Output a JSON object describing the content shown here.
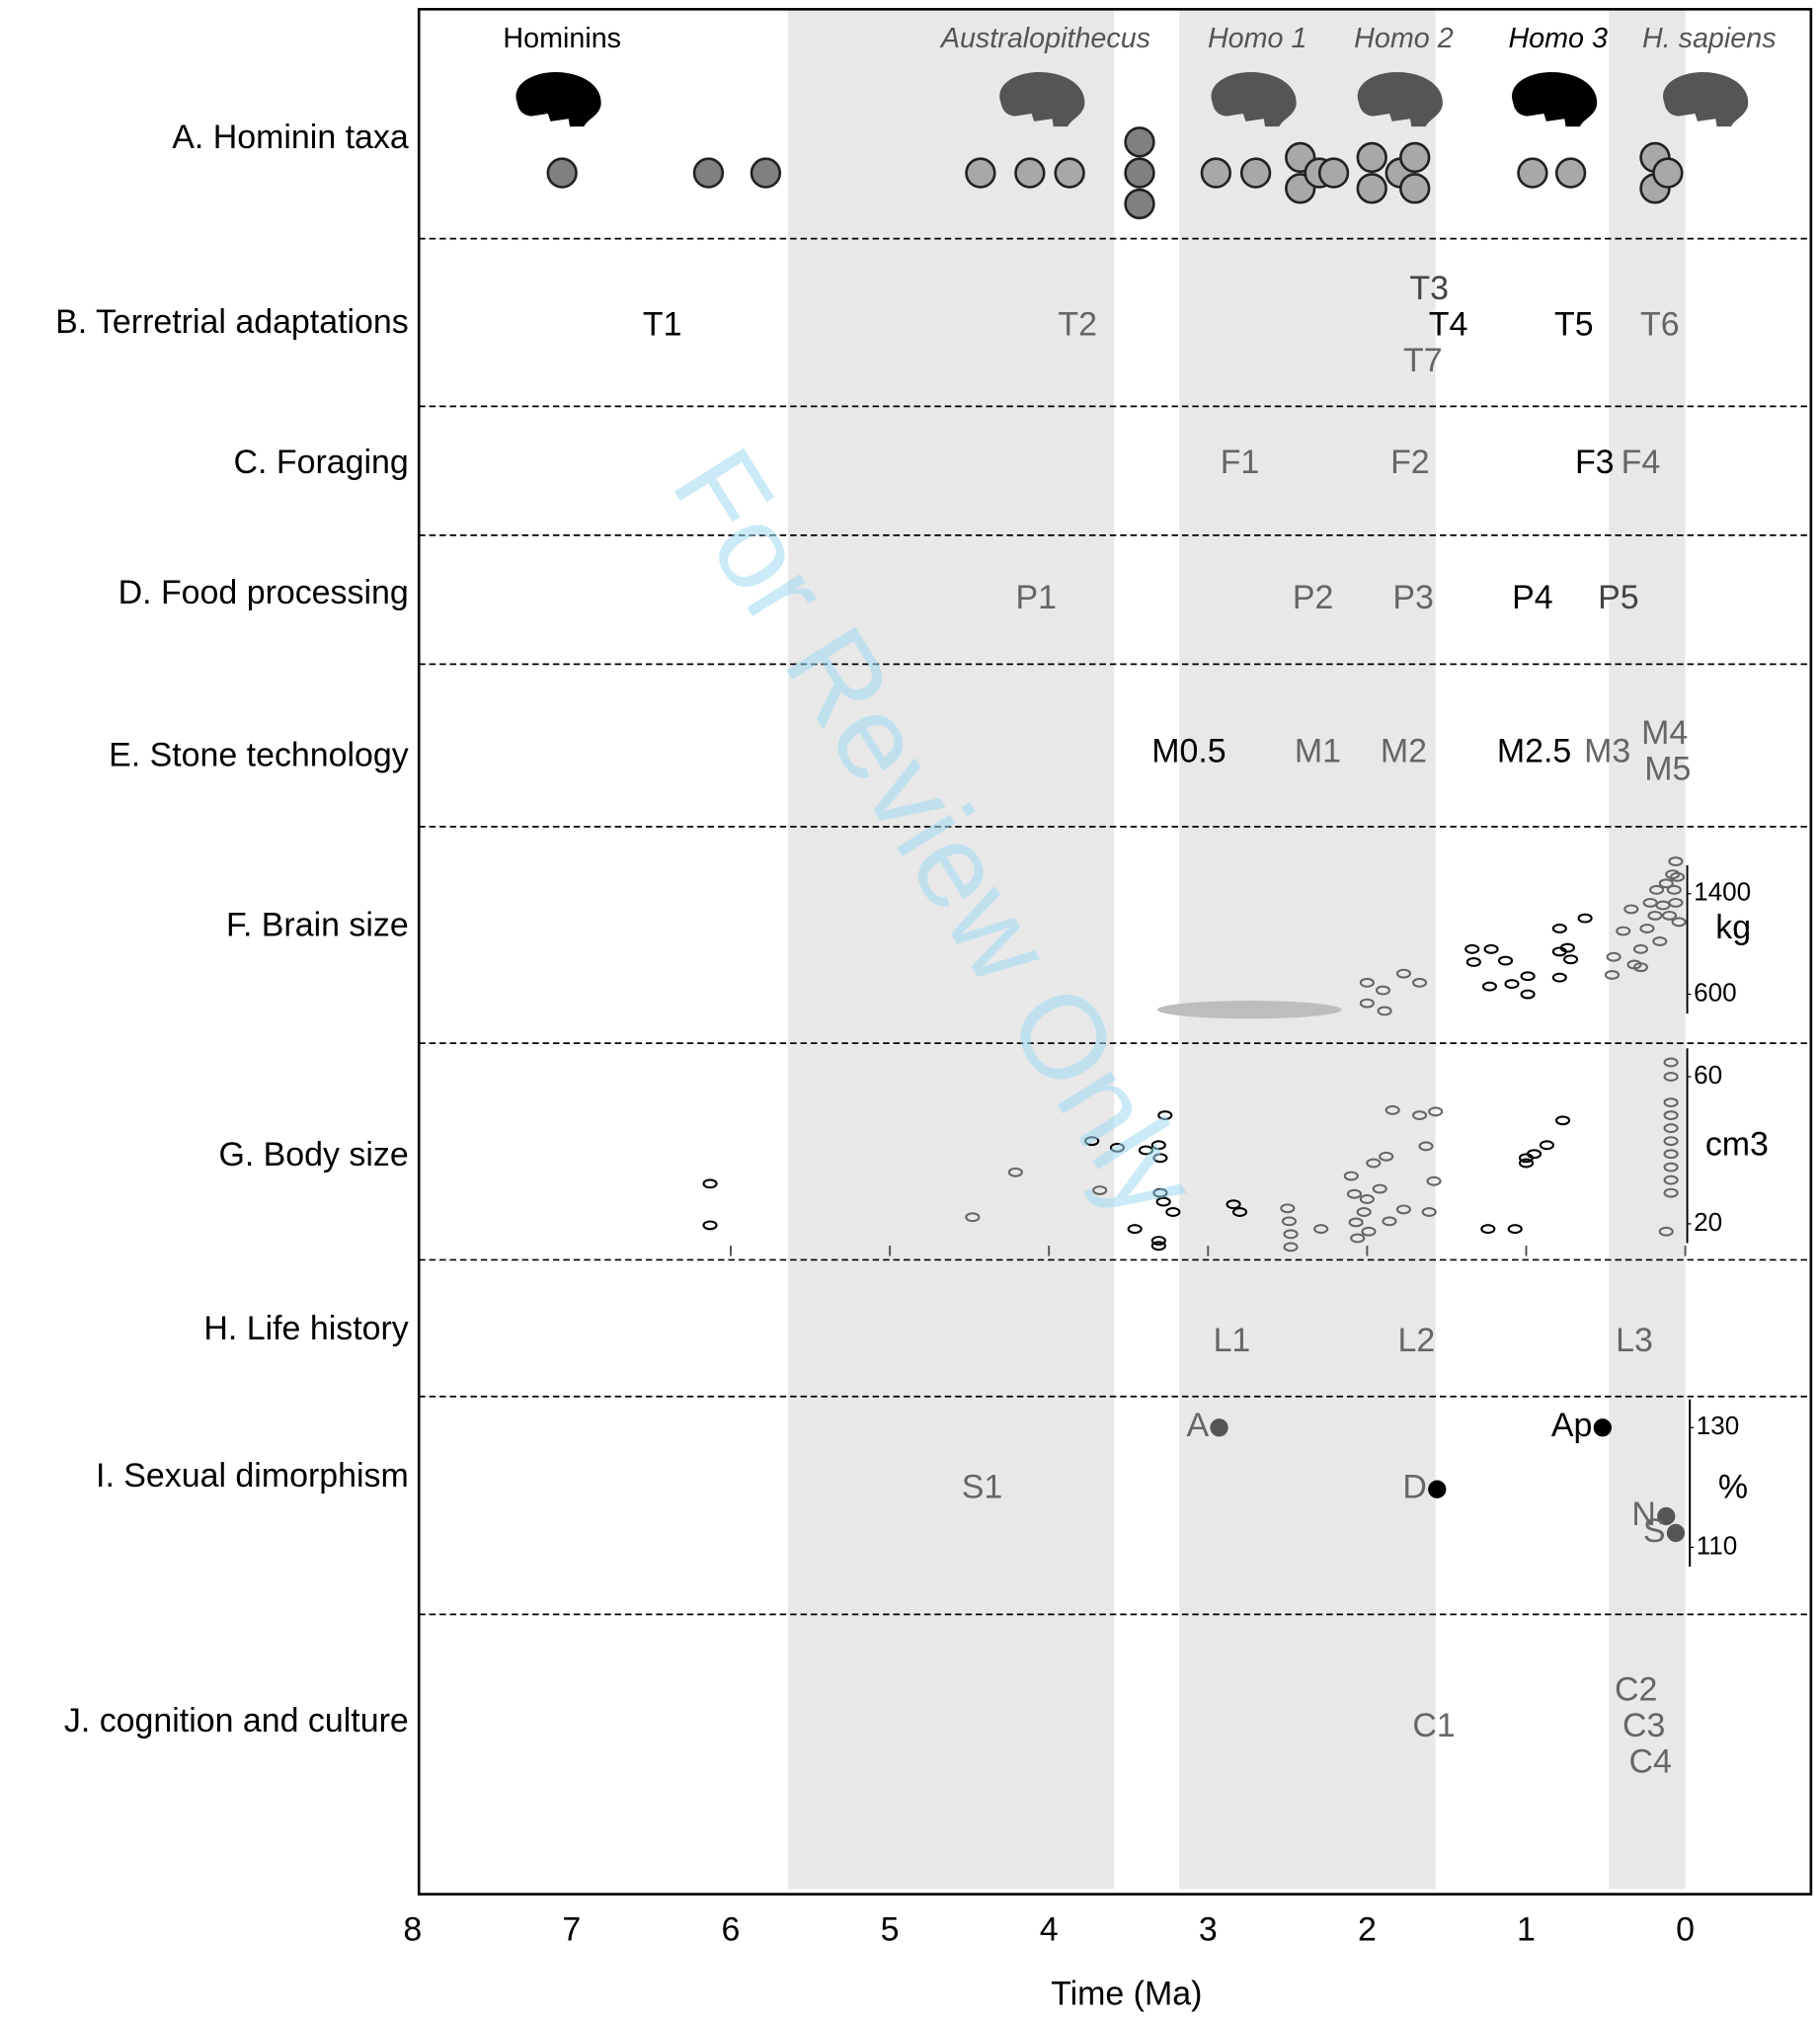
{
  "chart_data": {
    "type": "timeline",
    "watermark": "For Review Only",
    "x_label": "Time (Ma)",
    "xlim": [
      7.96,
      -0.79
    ],
    "xticks": [
      8,
      7,
      6,
      5,
      4,
      3,
      2,
      1,
      0
    ],
    "shaded": [
      [
        5.64,
        3.59
      ],
      [
        3.18,
        1.57
      ],
      [
        0.48,
        0
      ]
    ],
    "shade_color": "#e8e8e8",
    "taxa": [
      {
        "name": "Hominins",
        "x": 7.06,
        "color": "#000000",
        "italic": false
      },
      {
        "name": "Australopithecus",
        "x": 4.02,
        "color": "#555555",
        "italic": true
      },
      {
        "name": "Homo 1",
        "x": 2.69,
        "color": "#555555",
        "italic": true
      },
      {
        "name": "Homo 2",
        "x": 1.77,
        "color": "#555555",
        "italic": true
      },
      {
        "name": "Homo 3",
        "x": 0.8,
        "color": "#000000",
        "italic": true
      },
      {
        "name": "H. sapiens",
        "x": -0.15,
        "color": "#555555",
        "italic": true
      }
    ],
    "rows": [
      {
        "label": "A. Hominin taxa",
        "points": [
          {
            "color": "#808080",
            "x": [
              7.06,
              6.14,
              5.78,
              3.43,
              3.43,
              3.43
            ]
          },
          {
            "color": "#a8a8a8",
            "x": [
              4.43,
              4.12,
              3.87,
              2.95,
              2.7,
              2.42,
              2.42,
              2.3,
              2.21,
              1.97,
              1.97,
              1.79,
              1.7,
              1.7,
              0.96,
              0.72,
              0.19,
              0.19,
              0.11
            ]
          }
        ]
      },
      {
        "label": "B. Terretrial adaptations",
        "codes": [
          {
            "text": "T1",
            "x": 6.43,
            "color": "#000000"
          },
          {
            "text": "T2",
            "x": 3.82,
            "color": "#666666"
          },
          {
            "text": "T3",
            "x": 1.61,
            "color": "#444444"
          },
          {
            "text": "T4",
            "x": 1.49,
            "color": "#000000"
          },
          {
            "text": "T7",
            "x": 1.65,
            "color": "#666666"
          },
          {
            "text": "T5",
            "x": 0.7,
            "color": "#000000"
          },
          {
            "text": "T6",
            "x": 0.16,
            "color": "#666666"
          }
        ]
      },
      {
        "label": "C. Foraging",
        "codes": [
          {
            "text": "F1",
            "x": 2.8,
            "color": "#666666"
          },
          {
            "text": "F2",
            "x": 1.73,
            "color": "#666666"
          },
          {
            "text": "F3",
            "x": 0.57,
            "color": "#000000"
          },
          {
            "text": "F4",
            "x": 0.28,
            "color": "#666666"
          }
        ]
      },
      {
        "label": "D. Food processing",
        "codes": [
          {
            "text": "P1",
            "x": 4.08,
            "color": "#666666"
          },
          {
            "text": "P2",
            "x": 2.34,
            "color": "#666666"
          },
          {
            "text": "P3",
            "x": 1.71,
            "color": "#666666"
          },
          {
            "text": "P4",
            "x": 0.96,
            "color": "#000000"
          },
          {
            "text": "P5",
            "x": 0.42,
            "color": "#444444"
          }
        ]
      },
      {
        "label": "E. Stone technology",
        "codes": [
          {
            "text": "M0.5",
            "x": 3.12,
            "color": "#000000"
          },
          {
            "text": "M1",
            "x": 2.31,
            "color": "#666666"
          },
          {
            "text": "M2",
            "x": 1.77,
            "color": "#666666"
          },
          {
            "text": "M2.5",
            "x": 0.95,
            "color": "#000000"
          },
          {
            "text": "M3",
            "x": 0.49,
            "color": "#666666"
          },
          {
            "text": "M4",
            "x": 0.13,
            "color": "#666666"
          },
          {
            "text": "M5",
            "x": 0.11,
            "color": "#666666"
          }
        ]
      },
      {
        "label": "F. Brain size",
        "scale": {
          "ylim": [
            210,
            1934
          ],
          "yticks": [
            600,
            1400
          ],
          "unit": "kg",
          "range": {
            "x": [
              3.32,
              2.16
            ],
            "value": 477,
            "color": "#bdbdbd"
          },
          "series": [
            {
              "color": "#000000",
              "x": [
                1.34,
                1.33,
                1.23,
                1.22,
                1.13,
                1.09,
                0.99,
                0.99,
                0.79,
                0.79,
                0.79,
                0.74,
                0.72,
                0.63
              ],
              "values": [
                959,
                856,
                662,
                959,
                867,
                682,
                744,
                600,
                1123,
                939,
                733,
                969,
                877,
                1205
              ]
            },
            {
              "color": "#666666",
              "x": [
                2.0,
                2.0,
                1.9,
                1.89,
                1.77,
                1.67,
                0.45,
                0.46,
                0.39,
                0.34,
                0.32,
                0.28,
                0.28,
                0.24,
                0.22,
                0.19,
                0.18,
                0.16,
                0.14,
                0.12,
                0.1,
                0.08,
                0.07,
                0.06,
                0.05,
                0.04,
                0.06
              ],
              "values": [
                692,
                528,
                631,
                467,
                764,
                692,
                897,
                754,
                1103,
                1277,
                836,
                959,
                815,
                1123,
                1328,
                1226,
                1431,
                1021,
                1308,
                1482,
                1226,
                1554,
                1431,
                1657,
                1533,
                1175,
                1328
              ]
            }
          ]
        }
      },
      {
        "label": "G. Body size",
        "scale": {
          "ylim": [
            10.2,
            69.1
          ],
          "yticks": [
            20,
            60
          ],
          "unit": "cm3",
          "series": [
            {
              "color": "#000000",
              "x": [
                6.13,
                6.13,
                3.73,
                3.57,
                3.46,
                3.39,
                3.31,
                3.27,
                3.3,
                3.3,
                3.28,
                3.31,
                3.31,
                3.22,
                2.84,
                2.8,
                1.24,
                1.07,
                1.0,
                1.0,
                0.95,
                0.87,
                0.77
              ],
              "values": [
                30.9,
                19.6,
                42.5,
                40.7,
                18.6,
                40.0,
                41.4,
                49.5,
                37.9,
                28.4,
                26.0,
                15.4,
                14.0,
                23.2,
                25.3,
                23.2,
                18.6,
                18.6,
                36.5,
                37.9,
                39.0,
                41.4,
                48.1
              ]
            },
            {
              "color": "#666666",
              "x": [
                4.48,
                4.21,
                3.68,
                2.5,
                2.49,
                2.48,
                2.48,
                2.29,
                2.1,
                2.08,
                2.07,
                2.06,
                2.02,
                2.0,
                1.99,
                1.96,
                1.92,
                1.88,
                1.86,
                1.84,
                1.77,
                1.67,
                1.63,
                1.61,
                1.57,
                1.58,
                0.09,
                0.09,
                0.09,
                0.09,
                0.09,
                0.09,
                0.09,
                0.09,
                0.09,
                0.09,
                0.12
              ],
              "values": [
                21.8,
                34.0,
                29.1,
                24.2,
                20.7,
                17.2,
                13.7,
                18.6,
                33.0,
                28.1,
                20.4,
                16.1,
                23.2,
                26.7,
                17.9,
                36.5,
                29.5,
                38.3,
                20.7,
                50.9,
                23.9,
                49.5,
                41.1,
                23.2,
                50.5,
                31.6,
                63.9,
                60.0,
                53.0,
                49.5,
                46.0,
                42.5,
                39.0,
                35.4,
                31.9,
                28.4,
                17.9
              ]
            }
          ]
        }
      },
      {
        "label": "H. Life history",
        "codes": [
          {
            "text": "L1",
            "x": 2.85,
            "color": "#666666"
          },
          {
            "text": "L2",
            "x": 1.69,
            "color": "#666666"
          },
          {
            "text": "L3",
            "x": 0.32,
            "color": "#666666"
          }
        ]
      },
      {
        "label": "I. Sexual dimorphism",
        "codes": [
          {
            "text": "S1",
            "x": 4.42,
            "color": "#666666"
          }
        ],
        "dimorphism": {
          "ylim": [
            98.8,
            135.2
          ],
          "yticks": [
            110,
            130
          ],
          "unit": "%",
          "names": [
            "A",
            "D",
            "Ap",
            "N",
            "S"
          ],
          "x": [
            2.93,
            1.56,
            0.52,
            0.12,
            0.06
          ],
          "values": [
            130,
            119.7,
            130,
            115.2,
            112.4
          ],
          "colors": [
            "#555555",
            "#000000",
            "#000000",
            "#555555",
            "#555555"
          ],
          "label_colors": [
            "#666666",
            "#666666",
            "#000000",
            "#666666",
            "#666666"
          ]
        }
      },
      {
        "label": "J. cognition and culture",
        "codes": [
          {
            "text": "C1",
            "x": 1.58,
            "color": "#666666"
          },
          {
            "text": "C2",
            "x": 0.31,
            "color": "#666666"
          },
          {
            "text": "C3",
            "x": 0.26,
            "color": "#666666"
          },
          {
            "text": "C4",
            "x": 0.22,
            "color": "#666666"
          }
        ]
      }
    ]
  }
}
